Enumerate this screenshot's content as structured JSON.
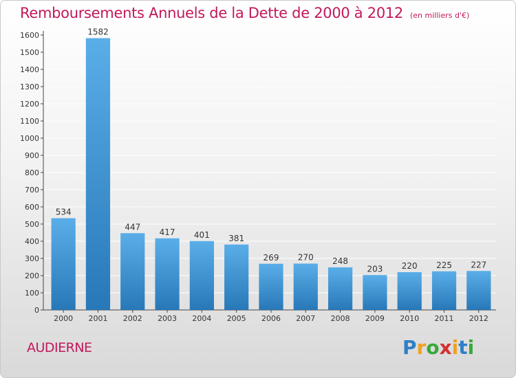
{
  "title": "Remboursements Annuels de la Dette de 2000 à 2012",
  "subtitle": "(en milliers d'€)",
  "commune": "AUDIERNE",
  "logo": {
    "letters": [
      "P",
      "r",
      "o",
      "x",
      "i",
      "t",
      "i"
    ],
    "colors": [
      "#2f7fc8",
      "#f0a020",
      "#3aa83a",
      "#d62f2f",
      "#f0a020",
      "#2f7fc8",
      "#3aa83a"
    ]
  },
  "colors": {
    "bar_top": "#5aaee8",
    "bar_bottom": "#2878b8",
    "title": "#c2185b",
    "grid": "#ffffff"
  },
  "chart_data": {
    "type": "bar",
    "title": "Remboursements Annuels de la Dette de 2000 à 2012",
    "subtitle": "(en milliers d'€)",
    "xlabel": "",
    "ylabel": "",
    "categories": [
      "2000",
      "2001",
      "2002",
      "2003",
      "2004",
      "2005",
      "2006",
      "2007",
      "2008",
      "2009",
      "2010",
      "2011",
      "2012"
    ],
    "values": [
      534,
      1582,
      447,
      417,
      401,
      381,
      269,
      270,
      248,
      203,
      220,
      225,
      227
    ],
    "ylim": [
      0,
      1600
    ],
    "yticks": [
      0,
      100,
      200,
      300,
      400,
      500,
      600,
      700,
      800,
      900,
      1000,
      1100,
      1200,
      1300,
      1400,
      1500,
      1600
    ],
    "grid": true,
    "data_labels": true
  }
}
